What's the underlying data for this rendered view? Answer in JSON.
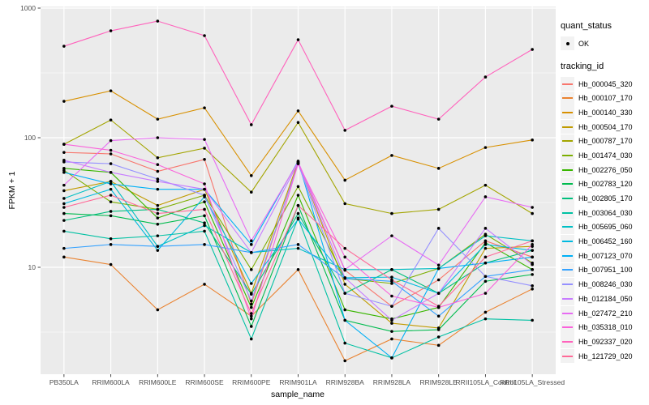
{
  "chart_data": {
    "type": "line",
    "title": "",
    "xlabel": "sample_name",
    "ylabel": "FPKM + 1",
    "y_scale": "log10",
    "y_ticks": [
      10,
      100,
      1000
    ],
    "ylim": [
      1.5,
      1000
    ],
    "grid": "on",
    "legend_position": "right",
    "categories": [
      "PB350LA",
      "RRIM600LA",
      "RRIM600LE",
      "RRIM600SE",
      "RRIM600PE",
      "RRIM901LA",
      "RRIM928BA",
      "RRIM928LA",
      "RRIM928LE",
      "RRII105LA_Control",
      "RRII105LA_Stressed"
    ],
    "legend": {
      "quant_title": "quant_status",
      "quant_ok_label": "OK",
      "tracking_title": "tracking_id"
    },
    "style": {
      "panel_bg": "#EBEBEB",
      "grid_color": "#FFFFFF",
      "point_color": "#000000",
      "key_bg": "#F2F2F2",
      "tick_text": "#4D4D4D",
      "tick_mark": "#333333"
    },
    "series": [
      {
        "name": "Hb_000045_320",
        "color": "#F8766D",
        "values": [
          77,
          75,
          55,
          68,
          5.2,
          64,
          9.5,
          5,
          8,
          16,
          12
        ]
      },
      {
        "name": "Hb_000107_170",
        "color": "#EA8331",
        "values": [
          12,
          10.5,
          4.7,
          7.4,
          4.2,
          9.6,
          1.9,
          2.8,
          2.5,
          4.5,
          6.8
        ]
      },
      {
        "name": "Hb_000140_330",
        "color": "#D89000",
        "values": [
          191,
          230,
          139,
          170,
          51,
          161,
          47,
          73,
          58,
          84,
          96
        ]
      },
      {
        "name": "Hb_000504_170",
        "color": "#C09B00",
        "values": [
          39,
          46,
          30,
          40,
          6.3,
          65,
          7.4,
          3.7,
          3.4,
          14,
          14.5
        ]
      },
      {
        "name": "Hb_000787_170",
        "color": "#A3A500",
        "values": [
          89,
          137,
          70,
          83,
          38,
          131,
          31,
          26,
          28,
          43,
          26
        ]
      },
      {
        "name": "Hb_001474_030",
        "color": "#7CAE00",
        "values": [
          56,
          32,
          28,
          36,
          9.6,
          42,
          8.2,
          7.5,
          9.8,
          18,
          10.8
        ]
      },
      {
        "name": "Hb_002276_050",
        "color": "#39B600",
        "values": [
          58,
          54,
          24,
          32,
          4.9,
          36,
          4.7,
          4,
          4.9,
          15.5,
          9.6
        ]
      },
      {
        "name": "Hb_002783_120",
        "color": "#00BB4E",
        "values": [
          26,
          25,
          21.5,
          25,
          3.5,
          30,
          3.9,
          3.2,
          3.3,
          7.8,
          8.8
        ]
      },
      {
        "name": "Hb_002805_170",
        "color": "#00BF7D",
        "values": [
          23,
          27,
          28,
          22,
          6.2,
          26,
          6.3,
          9.6,
          6.3,
          10.8,
          13.5
        ]
      },
      {
        "name": "Hb_003064_030",
        "color": "#00C1A3",
        "values": [
          19,
          16.6,
          17.5,
          19,
          2.8,
          24,
          2.6,
          2,
          2.9,
          4,
          3.9
        ]
      },
      {
        "name": "Hb_005695_060",
        "color": "#00BFC4",
        "values": [
          34,
          46,
          14.5,
          21,
          13,
          14,
          9.6,
          9.6,
          9.8,
          17.5,
          16
        ]
      },
      {
        "name": "Hb_006452_160",
        "color": "#00BAE0",
        "values": [
          31,
          40,
          13.5,
          35,
          7.5,
          23.5,
          8.3,
          8.4,
          6.3,
          15,
          13.5
        ]
      },
      {
        "name": "Hb_007123_070",
        "color": "#00B0F6",
        "values": [
          54,
          44,
          40,
          40,
          15,
          66,
          3.9,
          2,
          9.8,
          10.8,
          12
        ]
      },
      {
        "name": "Hb_007951_100",
        "color": "#35A2FF",
        "values": [
          14,
          15,
          14.5,
          15,
          13,
          15,
          8.2,
          7.8,
          4.2,
          8.5,
          9.6
        ]
      },
      {
        "name": "Hb_008246_030",
        "color": "#9590FF",
        "values": [
          65,
          63,
          48,
          36,
          5.5,
          63,
          6.3,
          5,
          20,
          8.5,
          7.2
        ]
      },
      {
        "name": "Hb_012184_050",
        "color": "#C77CFF",
        "values": [
          67,
          54,
          46,
          40,
          13,
          64,
          8.3,
          3.9,
          6.3,
          20,
          10.5
        ]
      },
      {
        "name": "Hb_027472_210",
        "color": "#E76BF3",
        "values": [
          43,
          95,
          100,
          97,
          16,
          65,
          9.6,
          17.5,
          10.4,
          35,
          29
        ]
      },
      {
        "name": "Hb_035318_010",
        "color": "#FA62DB",
        "values": [
          89,
          80,
          62,
          44,
          4,
          63,
          12,
          6,
          4.9,
          6.3,
          15
        ]
      },
      {
        "name": "Hb_092337_020",
        "color": "#FF62BC",
        "values": [
          508,
          668,
          794,
          613,
          126,
          570,
          114,
          175,
          139,
          294,
          480
        ]
      },
      {
        "name": "Hb_121729_020",
        "color": "#FF6A98",
        "values": [
          29,
          36,
          26,
          28,
          4.4,
          30,
          14,
          8,
          5,
          12,
          16
        ]
      }
    ]
  }
}
